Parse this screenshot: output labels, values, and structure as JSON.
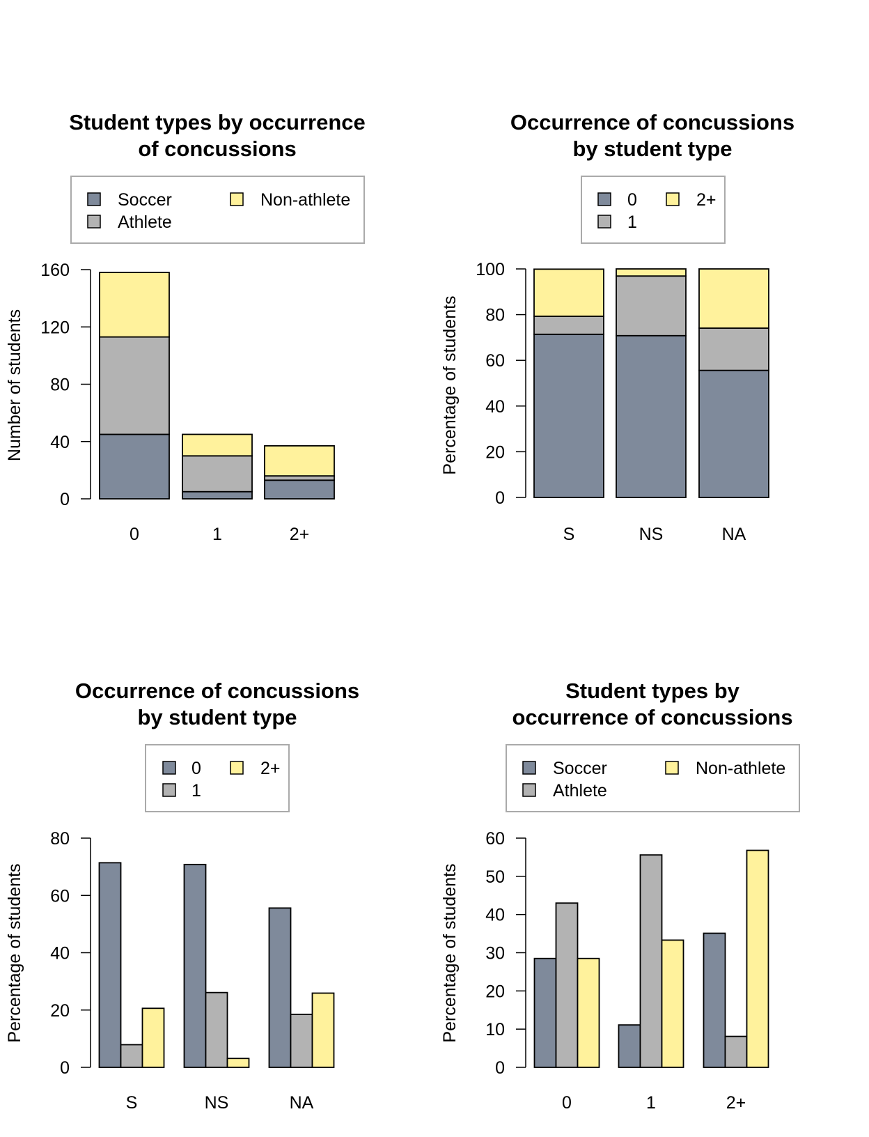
{
  "colors": {
    "c0": "#7f8a9b",
    "c1": "#b3b3b3",
    "c2": "#fff29c",
    "axis": "#000000",
    "legend_border": "#aaaaaa"
  },
  "chart_data": [
    {
      "id": "tl",
      "type": "bar",
      "stacked": true,
      "title": [
        "Student types by occurrence",
        "of concussions"
      ],
      "categories": [
        "0",
        "1",
        "2+"
      ],
      "series": [
        {
          "name": "Soccer",
          "values": [
            45,
            5,
            13
          ]
        },
        {
          "name": "Athlete",
          "values": [
            68,
            25,
            3
          ]
        },
        {
          "name": "Non-athlete",
          "values": [
            45,
            15,
            21
          ]
        }
      ],
      "ylabel": "Number of students",
      "xlabel": "",
      "ylim": [
        0,
        160
      ],
      "yticks": [
        0,
        40,
        80,
        120,
        160
      ],
      "legend": {
        "labels": [
          "Soccer",
          "Athlete",
          "Non-athlete"
        ],
        "placement": "above-plot"
      }
    },
    {
      "id": "tr",
      "type": "bar",
      "stacked": true,
      "title": [
        "Occurrence of concussions",
        "by student type"
      ],
      "categories": [
        "S",
        "NS",
        "NA"
      ],
      "series": [
        {
          "name": "0",
          "values": [
            71.4,
            70.8,
            55.6
          ]
        },
        {
          "name": "1",
          "values": [
            7.9,
            26.1,
            18.5
          ]
        },
        {
          "name": "2+",
          "values": [
            20.6,
            3.1,
            25.9
          ]
        }
      ],
      "ylabel": "Percentage of students",
      "xlabel": "",
      "ylim": [
        0,
        100
      ],
      "yticks": [
        0,
        20,
        40,
        60,
        80,
        100
      ],
      "legend": {
        "labels": [
          "0",
          "1",
          "2+"
        ],
        "placement": "above-plot"
      }
    },
    {
      "id": "bl",
      "type": "bar",
      "stacked": false,
      "title": [
        "Occurrence of concussions",
        "by student type"
      ],
      "categories": [
        "S",
        "NS",
        "NA"
      ],
      "series": [
        {
          "name": "0",
          "values": [
            71.4,
            70.8,
            55.6
          ]
        },
        {
          "name": "1",
          "values": [
            7.9,
            26.1,
            18.5
          ]
        },
        {
          "name": "2+",
          "values": [
            20.6,
            3.1,
            25.9
          ]
        }
      ],
      "ylabel": "Percentage of students",
      "xlabel": "",
      "ylim": [
        0,
        80
      ],
      "yticks": [
        0,
        20,
        40,
        60,
        80
      ],
      "legend": {
        "labels": [
          "0",
          "1",
          "2+"
        ],
        "placement": "above-plot"
      }
    },
    {
      "id": "br",
      "type": "bar",
      "stacked": false,
      "title": [
        "Student types by",
        "occurrence of concussions"
      ],
      "categories": [
        "0",
        "1",
        "2+"
      ],
      "series": [
        {
          "name": "Soccer",
          "values": [
            28.5,
            11.1,
            35.1
          ]
        },
        {
          "name": "Athlete",
          "values": [
            43.0,
            55.6,
            8.1
          ]
        },
        {
          "name": "Non-athlete",
          "values": [
            28.5,
            33.3,
            56.8
          ]
        }
      ],
      "ylabel": "Percentage of students",
      "xlabel": "",
      "ylim": [
        0,
        60
      ],
      "yticks": [
        0,
        10,
        20,
        30,
        40,
        50,
        60
      ],
      "legend": {
        "labels": [
          "Soccer",
          "Athlete",
          "Non-athlete"
        ],
        "placement": "above-plot"
      }
    }
  ]
}
